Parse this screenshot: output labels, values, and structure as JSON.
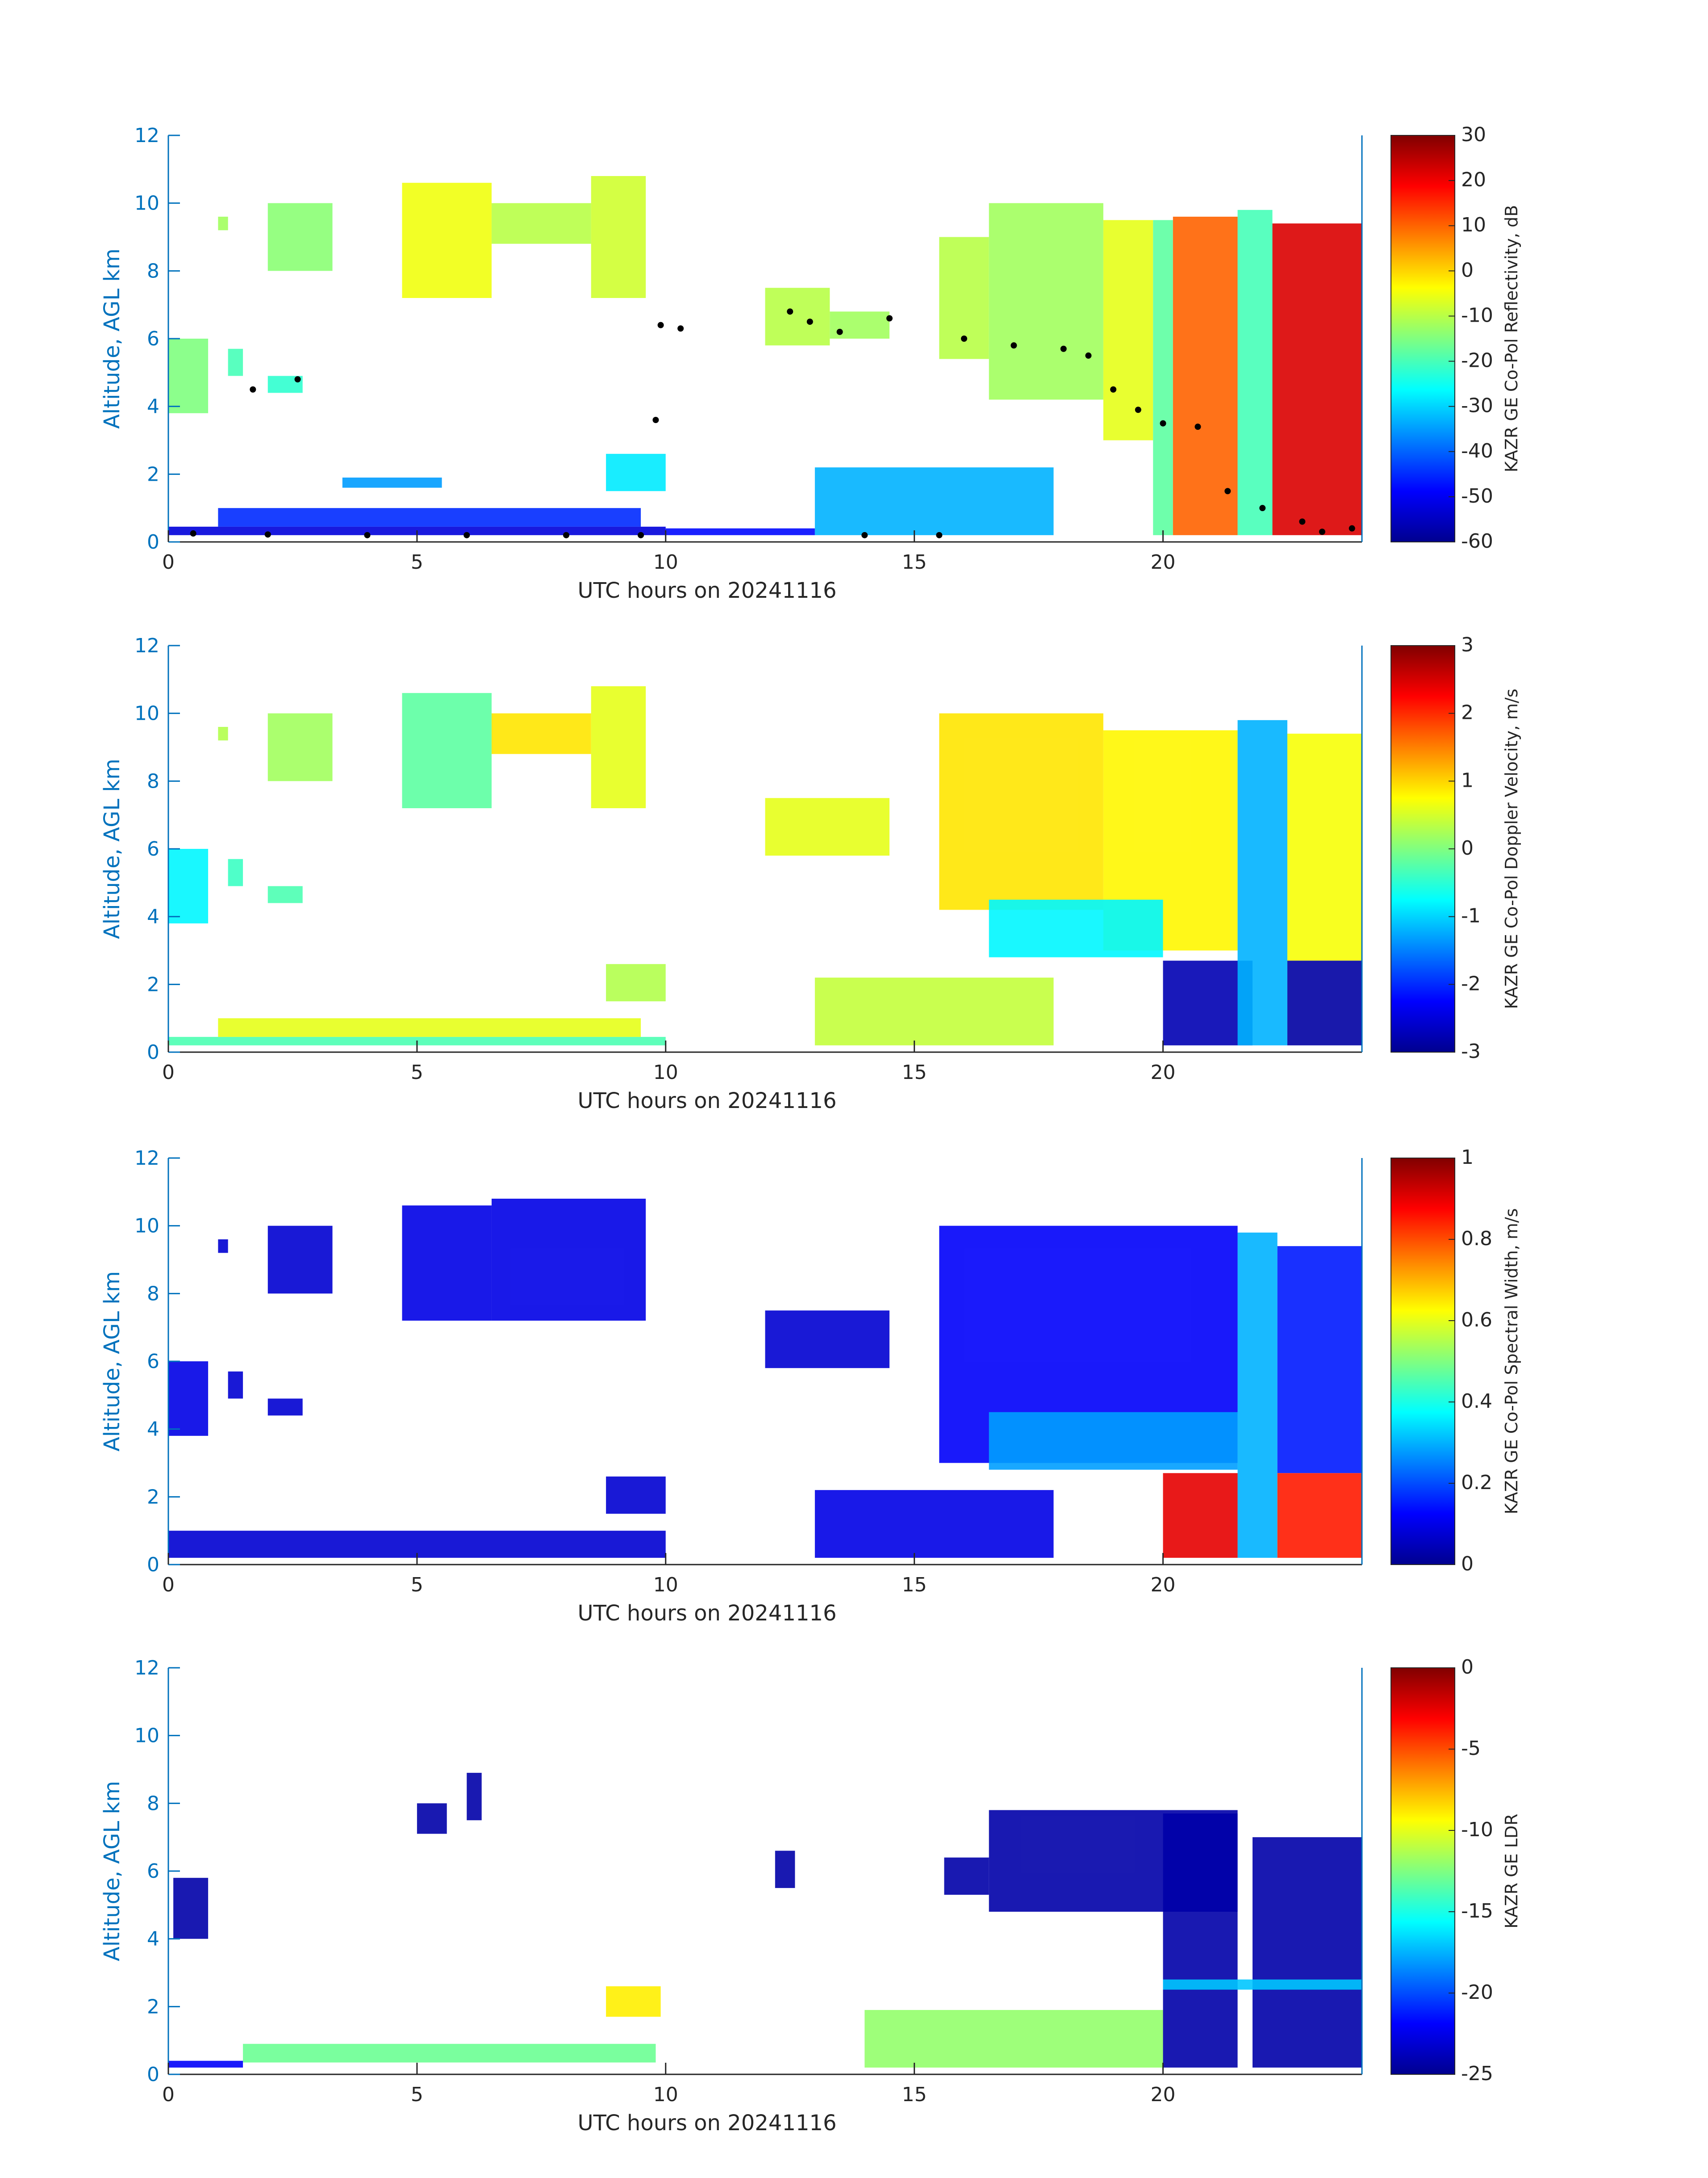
{
  "figure": {
    "xlabel": "UTC hours on 20241116",
    "ylabel": "Altitude, AGL km",
    "axis_color": "#0072BD",
    "label_color": "#262626"
  },
  "chart_data": [
    {
      "type": "heatmap",
      "name": "reflectivity",
      "title": "",
      "xlabel": "UTC hours on 20241116",
      "ylabel": "Altitude, AGL km",
      "xlim": [
        0,
        24
      ],
      "ylim": [
        0,
        12
      ],
      "xticks": [
        0,
        5,
        10,
        15,
        20
      ],
      "yticks": [
        0,
        2,
        4,
        6,
        8,
        10,
        12
      ],
      "colorbar": {
        "label": "KAZR GE Co-Pol Reflectivity, dB",
        "ticks": [
          -60,
          -50,
          -40,
          -30,
          -20,
          -10,
          0,
          10,
          20,
          30
        ],
        "clim": [
          -60,
          30
        ],
        "colormap": "jet"
      },
      "overlay_points_color": "#000000",
      "regions": [
        {
          "x0": 0.0,
          "x1": 0.8,
          "y0": 3.8,
          "y1": 6.0,
          "v": -15
        },
        {
          "x0": 1.2,
          "x1": 1.5,
          "y0": 4.9,
          "y1": 5.7,
          "v": -20
        },
        {
          "x0": 2.0,
          "x1": 2.7,
          "y0": 4.4,
          "y1": 4.9,
          "v": -22
        },
        {
          "x0": 1.0,
          "x1": 1.2,
          "y0": 9.2,
          "y1": 9.6,
          "v": -12
        },
        {
          "x0": 2.0,
          "x1": 3.3,
          "y0": 8.0,
          "y1": 10.0,
          "v": -14
        },
        {
          "x0": 4.7,
          "x1": 6.5,
          "y0": 7.2,
          "y1": 10.6,
          "v": -5
        },
        {
          "x0": 6.5,
          "x1": 8.5,
          "y0": 8.8,
          "y1": 10.0,
          "v": -10
        },
        {
          "x0": 8.5,
          "x1": 9.6,
          "y0": 7.2,
          "y1": 10.8,
          "v": -8
        },
        {
          "x0": 8.8,
          "x1": 10.0,
          "y0": 1.5,
          "y1": 2.6,
          "v": -28
        },
        {
          "x0": 0.0,
          "x1": 10.0,
          "y0": 0.2,
          "y1": 0.45,
          "v": -52
        },
        {
          "x0": 1.0,
          "x1": 9.5,
          "y0": 0.45,
          "y1": 1.0,
          "v": -45
        },
        {
          "x0": 3.5,
          "x1": 5.5,
          "y0": 1.6,
          "y1": 1.9,
          "v": -35
        },
        {
          "x0": 10.0,
          "x1": 13.0,
          "y0": 0.2,
          "y1": 0.4,
          "v": -48
        },
        {
          "x0": 12.0,
          "x1": 13.3,
          "y0": 5.8,
          "y1": 7.5,
          "v": -10
        },
        {
          "x0": 13.3,
          "x1": 14.5,
          "y0": 6.0,
          "y1": 6.8,
          "v": -12
        },
        {
          "x0": 13.0,
          "x1": 17.8,
          "y0": 0.2,
          "y1": 2.2,
          "v": -33
        },
        {
          "x0": 15.5,
          "x1": 16.5,
          "y0": 5.4,
          "y1": 9.0,
          "v": -10
        },
        {
          "x0": 16.5,
          "x1": 18.8,
          "y0": 4.2,
          "y1": 10.0,
          "v": -12
        },
        {
          "x0": 18.8,
          "x1": 19.8,
          "y0": 3.0,
          "y1": 9.5,
          "v": -6
        },
        {
          "x0": 19.8,
          "x1": 20.2,
          "y0": 0.2,
          "y1": 9.5,
          "v": -18
        },
        {
          "x0": 20.2,
          "x1": 21.5,
          "y0": 0.2,
          "y1": 9.6,
          "v": 10
        },
        {
          "x0": 21.5,
          "x1": 22.2,
          "y0": 0.2,
          "y1": 9.8,
          "v": -20
        },
        {
          "x0": 22.2,
          "x1": 24.0,
          "y0": 0.2,
          "y1": 9.4,
          "v": 22
        }
      ],
      "overlay_points": [
        {
          "x": 0.5,
          "y": 0.25
        },
        {
          "x": 2.0,
          "y": 0.22
        },
        {
          "x": 4.0,
          "y": 0.2
        },
        {
          "x": 6.0,
          "y": 0.2
        },
        {
          "x": 8.0,
          "y": 0.2
        },
        {
          "x": 9.5,
          "y": 0.2
        },
        {
          "x": 1.7,
          "y": 4.5
        },
        {
          "x": 2.6,
          "y": 4.8
        },
        {
          "x": 9.8,
          "y": 3.6
        },
        {
          "x": 9.9,
          "y": 6.4
        },
        {
          "x": 10.3,
          "y": 6.3
        },
        {
          "x": 12.5,
          "y": 6.8
        },
        {
          "x": 12.9,
          "y": 6.5
        },
        {
          "x": 13.5,
          "y": 6.2
        },
        {
          "x": 14.5,
          "y": 6.6
        },
        {
          "x": 14.0,
          "y": 0.2
        },
        {
          "x": 15.5,
          "y": 0.2
        },
        {
          "x": 16.0,
          "y": 6.0
        },
        {
          "x": 17.0,
          "y": 5.8
        },
        {
          "x": 18.0,
          "y": 5.7
        },
        {
          "x": 18.5,
          "y": 5.5
        },
        {
          "x": 19.0,
          "y": 4.5
        },
        {
          "x": 19.5,
          "y": 3.9
        },
        {
          "x": 20.0,
          "y": 3.5
        },
        {
          "x": 20.7,
          "y": 3.4
        },
        {
          "x": 21.3,
          "y": 1.5
        },
        {
          "x": 22.0,
          "y": 1.0
        },
        {
          "x": 22.8,
          "y": 0.6
        },
        {
          "x": 23.2,
          "y": 0.3
        },
        {
          "x": 23.8,
          "y": 0.4
        }
      ]
    },
    {
      "type": "heatmap",
      "name": "doppler-velocity",
      "title": "",
      "xlabel": "UTC hours on 20241116",
      "ylabel": "Altitude, AGL km",
      "xlim": [
        0,
        24
      ],
      "ylim": [
        0,
        12
      ],
      "xticks": [
        0,
        5,
        10,
        15,
        20
      ],
      "yticks": [
        0,
        2,
        4,
        6,
        8,
        10,
        12
      ],
      "colorbar": {
        "label": "KAZR GE Co-Pol Doppler Velocity, m/s",
        "ticks": [
          -3,
          -2,
          -1,
          0,
          1,
          2,
          3
        ],
        "clim": [
          -3,
          3
        ],
        "colormap": "jet"
      },
      "regions": [
        {
          "x0": 0.0,
          "x1": 0.8,
          "y0": 3.8,
          "y1": 6.0,
          "v": -0.8
        },
        {
          "x0": 1.2,
          "x1": 1.5,
          "y0": 4.9,
          "y1": 5.7,
          "v": -0.4
        },
        {
          "x0": 2.0,
          "x1": 2.7,
          "y0": 4.4,
          "y1": 4.9,
          "v": -0.3
        },
        {
          "x0": 1.0,
          "x1": 1.2,
          "y0": 9.2,
          "y1": 9.6,
          "v": 0.3
        },
        {
          "x0": 2.0,
          "x1": 3.3,
          "y0": 8.0,
          "y1": 10.0,
          "v": 0.2
        },
        {
          "x0": 4.7,
          "x1": 6.5,
          "y0": 7.2,
          "y1": 10.6,
          "v": -0.2
        },
        {
          "x0": 6.5,
          "x1": 8.5,
          "y0": 8.8,
          "y1": 10.0,
          "v": 0.9
        },
        {
          "x0": 8.5,
          "x1": 9.6,
          "y0": 7.2,
          "y1": 10.8,
          "v": 0.6
        },
        {
          "x0": 8.8,
          "x1": 10.0,
          "y0": 1.5,
          "y1": 2.6,
          "v": 0.3
        },
        {
          "x0": 0.0,
          "x1": 10.0,
          "y0": 0.2,
          "y1": 0.45,
          "v": -0.3
        },
        {
          "x0": 1.0,
          "x1": 9.5,
          "y0": 0.45,
          "y1": 1.0,
          "v": 0.6
        },
        {
          "x0": 12.0,
          "x1": 14.5,
          "y0": 5.8,
          "y1": 7.5,
          "v": 0.6
        },
        {
          "x0": 13.0,
          "x1": 17.8,
          "y0": 0.2,
          "y1": 2.2,
          "v": 0.4
        },
        {
          "x0": 15.5,
          "x1": 18.8,
          "y0": 4.2,
          "y1": 10.0,
          "v": 0.9
        },
        {
          "x0": 18.8,
          "x1": 21.5,
          "y0": 3.0,
          "y1": 9.5,
          "v": 0.8
        },
        {
          "x0": 16.5,
          "x1": 20.0,
          "y0": 2.8,
          "y1": 4.5,
          "v": -0.8
        },
        {
          "x0": 20.0,
          "x1": 21.8,
          "y0": 0.2,
          "y1": 2.7,
          "v": -2.7
        },
        {
          "x0": 21.5,
          "x1": 22.5,
          "y0": 0.2,
          "y1": 9.8,
          "v": -1.2
        },
        {
          "x0": 22.5,
          "x1": 24.0,
          "y0": 2.7,
          "y1": 9.4,
          "v": 0.7
        },
        {
          "x0": 22.5,
          "x1": 24.0,
          "y0": 0.2,
          "y1": 2.7,
          "v": -2.8
        }
      ]
    },
    {
      "type": "heatmap",
      "name": "spectral-width",
      "title": "",
      "xlabel": "UTC hours on 20241116",
      "ylabel": "Altitude, AGL km",
      "xlim": [
        0,
        24
      ],
      "ylim": [
        0,
        12
      ],
      "xticks": [
        0,
        5,
        10,
        15,
        20
      ],
      "yticks": [
        0,
        2,
        4,
        6,
        8,
        10,
        12
      ],
      "colorbar": {
        "label": "KAZR GE Co-Pol Spectral Width, m/s",
        "ticks": [
          0,
          0.2,
          0.4,
          0.6,
          0.8,
          1
        ],
        "clim": [
          0,
          1
        ],
        "colormap": "jet"
      },
      "regions": [
        {
          "x0": 0.0,
          "x1": 0.8,
          "y0": 3.8,
          "y1": 6.0,
          "v": 0.1
        },
        {
          "x0": 1.2,
          "x1": 1.5,
          "y0": 4.9,
          "y1": 5.7,
          "v": 0.08
        },
        {
          "x0": 2.0,
          "x1": 2.7,
          "y0": 4.4,
          "y1": 4.9,
          "v": 0.08
        },
        {
          "x0": 1.0,
          "x1": 1.2,
          "y0": 9.2,
          "y1": 9.6,
          "v": 0.08
        },
        {
          "x0": 2.0,
          "x1": 3.3,
          "y0": 8.0,
          "y1": 10.0,
          "v": 0.08
        },
        {
          "x0": 4.7,
          "x1": 6.5,
          "y0": 7.2,
          "y1": 10.6,
          "v": 0.1
        },
        {
          "x0": 6.5,
          "x1": 9.6,
          "y0": 7.2,
          "y1": 10.8,
          "v": 0.1
        },
        {
          "x0": 8.8,
          "x1": 10.0,
          "y0": 1.5,
          "y1": 2.6,
          "v": 0.08
        },
        {
          "x0": 0.0,
          "x1": 10.0,
          "y0": 0.2,
          "y1": 1.0,
          "v": 0.08
        },
        {
          "x0": 12.0,
          "x1": 14.5,
          "y0": 5.8,
          "y1": 7.5,
          "v": 0.08
        },
        {
          "x0": 13.0,
          "x1": 17.8,
          "y0": 0.2,
          "y1": 2.2,
          "v": 0.1
        },
        {
          "x0": 15.5,
          "x1": 21.5,
          "y0": 3.0,
          "y1": 10.0,
          "v": 0.12
        },
        {
          "x0": 16.5,
          "x1": 21.5,
          "y0": 2.8,
          "y1": 4.5,
          "v": 0.28
        },
        {
          "x0": 20.0,
          "x1": 21.5,
          "y0": 0.2,
          "y1": 2.7,
          "v": 0.9
        },
        {
          "x0": 21.5,
          "x1": 22.3,
          "y0": 0.2,
          "y1": 9.8,
          "v": 0.3
        },
        {
          "x0": 22.3,
          "x1": 24.0,
          "y0": 2.7,
          "y1": 9.4,
          "v": 0.15
        },
        {
          "x0": 22.3,
          "x1": 24.0,
          "y0": 0.2,
          "y1": 2.7,
          "v": 0.85
        }
      ]
    },
    {
      "type": "heatmap",
      "name": "ldr",
      "title": "",
      "xlabel": "UTC hours on 20241116",
      "ylabel": "Altitude, AGL km",
      "xlim": [
        0,
        24
      ],
      "ylim": [
        0,
        12
      ],
      "xticks": [
        0,
        5,
        10,
        15,
        20
      ],
      "yticks": [
        0,
        2,
        4,
        6,
        8,
        10,
        12
      ],
      "colorbar": {
        "label": "KAZR GE LDR",
        "ticks": [
          -25,
          -20,
          -15,
          -10,
          -5,
          0
        ],
        "clim": [
          -25,
          0
        ],
        "colormap": "jet"
      },
      "regions": [
        {
          "x0": 0.1,
          "x1": 0.8,
          "y0": 4.0,
          "y1": 5.8,
          "v": -24
        },
        {
          "x0": 5.0,
          "x1": 5.6,
          "y0": 7.1,
          "y1": 8.0,
          "v": -24
        },
        {
          "x0": 6.0,
          "x1": 6.3,
          "y0": 7.5,
          "y1": 8.9,
          "v": -24
        },
        {
          "x0": 8.8,
          "x1": 9.9,
          "y0": 1.7,
          "y1": 2.6,
          "v": -9
        },
        {
          "x0": 1.5,
          "x1": 9.8,
          "y0": 0.35,
          "y1": 0.9,
          "v": -13
        },
        {
          "x0": 0.0,
          "x1": 1.5,
          "y0": 0.2,
          "y1": 0.4,
          "v": -22
        },
        {
          "x0": 12.2,
          "x1": 12.6,
          "y0": 5.5,
          "y1": 6.6,
          "v": -24
        },
        {
          "x0": 14.0,
          "x1": 20.0,
          "y0": 0.2,
          "y1": 1.9,
          "v": -12
        },
        {
          "x0": 15.6,
          "x1": 16.5,
          "y0": 5.3,
          "y1": 6.4,
          "v": -24
        },
        {
          "x0": 16.5,
          "x1": 21.5,
          "y0": 4.8,
          "y1": 7.8,
          "v": -24
        },
        {
          "x0": 20.0,
          "x1": 21.5,
          "y0": 0.2,
          "y1": 7.7,
          "v": -24
        },
        {
          "x0": 21.8,
          "x1": 24.0,
          "y0": 0.2,
          "y1": 7.0,
          "v": -24
        },
        {
          "x0": 20.0,
          "x1": 24.0,
          "y0": 2.5,
          "y1": 2.8,
          "v": -17
        }
      ]
    }
  ]
}
